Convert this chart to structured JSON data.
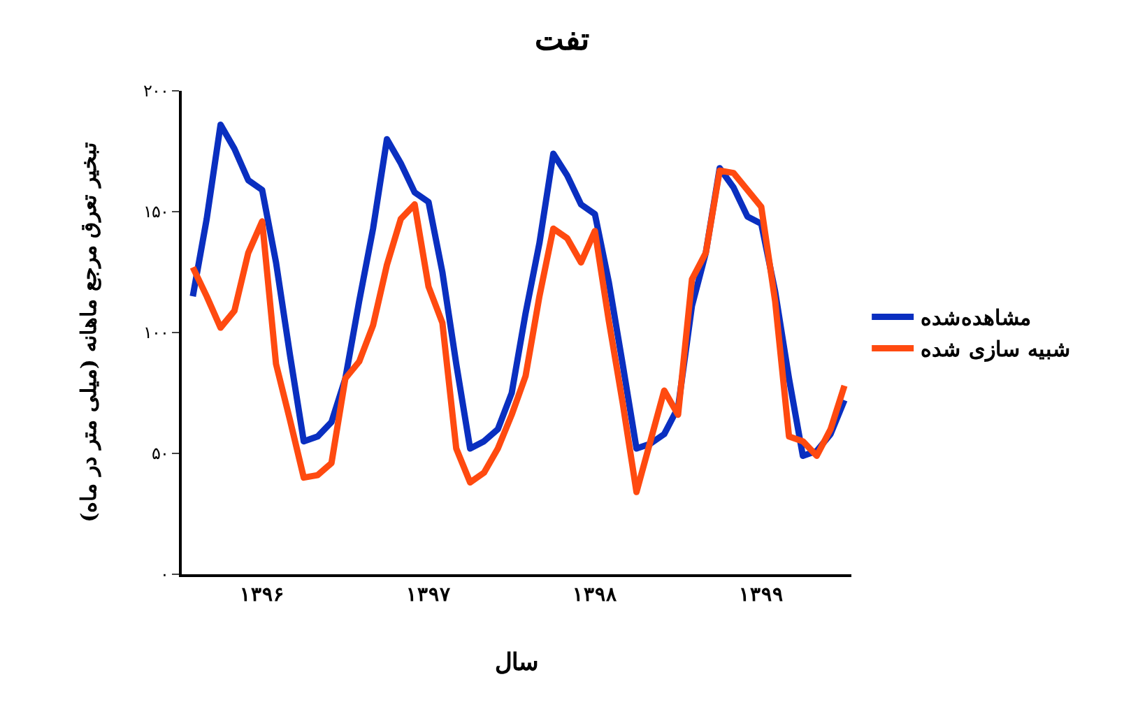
{
  "chart_data": {
    "type": "line",
    "title": "تفت",
    "xlabel": "سال",
    "ylabel": "تبخیر تعرق مرجع ماهانه (میلی متر در ماه)",
    "categories": [
      null,
      null,
      null,
      null,
      null,
      "۱۳۹۶",
      null,
      null,
      null,
      null,
      null,
      null,
      null,
      null,
      null,
      null,
      null,
      "۱۳۹۷",
      null,
      null,
      null,
      null,
      null,
      null,
      null,
      null,
      null,
      null,
      null,
      "۱۳۹۸",
      null,
      null,
      null,
      null,
      null,
      null,
      null,
      null,
      null,
      null,
      null,
      "۱۳۹۹",
      null,
      null,
      null,
      null,
      null,
      null
    ],
    "series": [
      {
        "name": "مشاهده‌شده",
        "color": "#0a2fc0",
        "values": [
          115,
          147,
          186,
          176,
          163,
          159,
          129,
          91,
          55,
          57,
          63,
          81,
          113,
          143,
          180,
          170,
          158,
          154,
          125,
          87,
          52,
          55,
          60,
          75,
          108,
          137,
          174,
          165,
          153,
          149,
          121,
          87,
          52,
          54,
          58,
          69,
          111,
          133,
          168,
          160,
          148,
          145,
          117,
          81,
          49,
          51,
          58,
          72
        ]
      },
      {
        "name": "شبیه سازی شده",
        "color": "#ff4a10",
        "values": [
          127,
          115,
          102,
          109,
          133,
          146,
          87,
          64,
          40,
          41,
          46,
          81,
          88,
          103,
          128,
          147,
          153,
          119,
          104,
          52,
          38,
          42,
          52,
          66,
          82,
          115,
          143,
          139,
          129,
          142,
          105,
          71,
          34,
          55,
          76,
          66,
          122,
          133,
          167,
          166,
          159,
          152,
          113,
          57,
          55,
          49,
          60,
          78
        ]
      }
    ],
    "ylim": [
      0,
      200
    ],
    "yticks": [
      {
        "value": 0,
        "label": "۰"
      },
      {
        "value": 50,
        "label": "۵۰"
      },
      {
        "value": 100,
        "label": "۱۰۰"
      },
      {
        "value": 150,
        "label": "۱۵۰"
      },
      {
        "value": 200,
        "label": "۲۰۰"
      }
    ],
    "grid": false,
    "legend": "right",
    "marker": "none",
    "line_style": "solid"
  }
}
